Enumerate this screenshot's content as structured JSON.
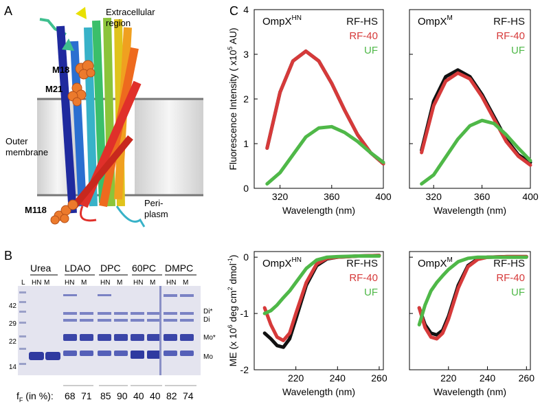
{
  "figure": {
    "panel_a": {
      "letter": "A",
      "labels": {
        "extracellular": "Extracellular\nregion",
        "outer_membrane": "Outer\nmembrane",
        "periplasm": "Peri-\nplasm",
        "m18": "M18",
        "m21": "M21",
        "m118": "M118"
      }
    },
    "panel_b": {
      "letter": "B",
      "conditions": [
        "Urea",
        "LDAO",
        "DPC",
        "60PC",
        "DMPC"
      ],
      "lane_l": "L",
      "lane_labels": [
        "HN",
        "M",
        "HN",
        "M",
        "HN",
        "M",
        "HN",
        "M",
        "HN",
        "M"
      ],
      "mw_markers": [
        "42",
        "29",
        "22",
        "14"
      ],
      "band_labels": [
        "Di*",
        "Di",
        "Mo*",
        "Mo"
      ],
      "ff_label": "f",
      "ff_sub": "F",
      "ff_suffix": " (in %):",
      "ff_values": [
        "68",
        "71",
        "85",
        "90",
        "40",
        "40",
        "82",
        "74"
      ]
    },
    "panel_c": {
      "letter": "C",
      "colors": {
        "RF-HS": "#111111",
        "RF-40": "#d63a3a",
        "UF": "#4fb848"
      }
    }
  },
  "chart_data": [
    {
      "type": "line",
      "title": "OmpX",
      "title_sup": "HN",
      "xlabel": "Wavelength (nm)",
      "ylabel": "Fluorescence Intensity ( x10",
      "ylabel_sup": "5",
      "ylabel_suffix": " AU)",
      "xlim": [
        300,
        400
      ],
      "ylim": [
        0,
        4
      ],
      "xticks": [
        "320",
        "360",
        "400"
      ],
      "yticks": [
        "0",
        "1",
        "2",
        "3",
        "4"
      ],
      "legend": [
        "RF-HS",
        "RF-40",
        "UF"
      ],
      "series": [
        {
          "name": "RF-HS",
          "x": [
            310,
            320,
            330,
            340,
            350,
            360,
            370,
            380,
            390,
            400
          ],
          "y": [
            0.9,
            2.15,
            2.85,
            3.07,
            2.85,
            2.35,
            1.75,
            1.2,
            0.8,
            0.55
          ]
        },
        {
          "name": "RF-40",
          "x": [
            310,
            320,
            330,
            340,
            350,
            360,
            370,
            380,
            390,
            400
          ],
          "y": [
            0.9,
            2.15,
            2.85,
            3.07,
            2.85,
            2.35,
            1.75,
            1.2,
            0.8,
            0.55
          ]
        },
        {
          "name": "UF",
          "x": [
            310,
            320,
            330,
            340,
            350,
            360,
            370,
            380,
            390,
            400
          ],
          "y": [
            0.1,
            0.35,
            0.75,
            1.15,
            1.35,
            1.38,
            1.25,
            1.05,
            0.8,
            0.58
          ]
        }
      ]
    },
    {
      "type": "line",
      "title": "OmpX",
      "title_sup": "M",
      "xlabel": "Wavelength (nm)",
      "xlim": [
        300,
        400
      ],
      "ylim": [
        0,
        4
      ],
      "xticks": [
        "320",
        "360",
        "400"
      ],
      "yticks": [],
      "legend": [
        "RF-HS",
        "RF-40",
        "UF"
      ],
      "series": [
        {
          "name": "RF-HS",
          "x": [
            310,
            320,
            330,
            340,
            350,
            360,
            370,
            380,
            390,
            400
          ],
          "y": [
            0.85,
            1.95,
            2.5,
            2.65,
            2.5,
            2.1,
            1.6,
            1.1,
            0.75,
            0.58
          ]
        },
        {
          "name": "RF-40",
          "x": [
            310,
            320,
            330,
            340,
            350,
            360,
            370,
            380,
            390,
            400
          ],
          "y": [
            0.8,
            1.85,
            2.4,
            2.58,
            2.45,
            2.05,
            1.55,
            1.05,
            0.72,
            0.52
          ]
        },
        {
          "name": "UF",
          "x": [
            310,
            320,
            330,
            340,
            350,
            360,
            370,
            380,
            390,
            400
          ],
          "y": [
            0.1,
            0.3,
            0.7,
            1.1,
            1.4,
            1.52,
            1.45,
            1.2,
            0.9,
            0.62
          ]
        }
      ]
    },
    {
      "type": "line",
      "title": "OmpX",
      "title_sup": "HN",
      "xlabel": "Wavelength (nm)",
      "ylabel": "ME (x 10",
      "ylabel_sup": "6",
      "ylabel_suffix": " deg cm",
      "ylabel_sup2": "2",
      "ylabel_suffix2": " dmol",
      "ylabel_sup3": "-1",
      "ylabel_suffix3": ")",
      "xlim": [
        200,
        262
      ],
      "ylim": [
        -2,
        0.1
      ],
      "xticks": [
        "220",
        "240",
        "260"
      ],
      "yticks": [
        "0",
        "-1",
        "-2"
      ],
      "legend": [
        "RF-HS",
        "RF-40",
        "UF"
      ],
      "series": [
        {
          "name": "RF-HS",
          "x": [
            205,
            208,
            211,
            214,
            217,
            220,
            225,
            230,
            235,
            240,
            250,
            260
          ],
          "y": [
            -1.35,
            -1.45,
            -1.57,
            -1.6,
            -1.45,
            -1.1,
            -0.5,
            -0.15,
            -0.03,
            0.0,
            0.02,
            0.03
          ]
        },
        {
          "name": "RF-40",
          "x": [
            205,
            208,
            211,
            214,
            217,
            220,
            225,
            230,
            235,
            240,
            250,
            260
          ],
          "y": [
            -0.9,
            -1.2,
            -1.42,
            -1.48,
            -1.35,
            -1.0,
            -0.45,
            -0.12,
            -0.02,
            0.0,
            0.02,
            0.03
          ]
        },
        {
          "name": "UF",
          "x": [
            205,
            208,
            211,
            214,
            217,
            220,
            225,
            230,
            235,
            240,
            250,
            260
          ],
          "y": [
            -1.0,
            -0.95,
            -0.85,
            -0.72,
            -0.6,
            -0.45,
            -0.2,
            -0.05,
            0.0,
            0.01,
            0.02,
            0.02
          ]
        }
      ]
    },
    {
      "type": "line",
      "title": "OmpX",
      "title_sup": "M",
      "xlabel": "Wavelength (nm)",
      "xlim": [
        200,
        262
      ],
      "ylim": [
        -2,
        0.1
      ],
      "xticks": [
        "220",
        "240",
        "260"
      ],
      "yticks": [],
      "legend": [
        "RF-HS",
        "RF-40",
        "UF"
      ],
      "series": [
        {
          "name": "RF-HS",
          "x": [
            205,
            208,
            211,
            214,
            217,
            220,
            225,
            230,
            235,
            240,
            250,
            260
          ],
          "y": [
            -0.9,
            -1.2,
            -1.35,
            -1.38,
            -1.3,
            -1.05,
            -0.5,
            -0.15,
            -0.03,
            0.0,
            0.01,
            0.01
          ]
        },
        {
          "name": "RF-40",
          "x": [
            205,
            208,
            211,
            214,
            217,
            220,
            225,
            230,
            235,
            240,
            250,
            260
          ],
          "y": [
            -0.9,
            -1.25,
            -1.42,
            -1.45,
            -1.35,
            -1.1,
            -0.55,
            -0.17,
            -0.04,
            0.0,
            0.01,
            0.01
          ]
        },
        {
          "name": "UF",
          "x": [
            205,
            208,
            211,
            214,
            217,
            220,
            225,
            230,
            235,
            240,
            250,
            260
          ],
          "y": [
            -1.2,
            -0.85,
            -0.6,
            -0.45,
            -0.33,
            -0.22,
            -0.08,
            -0.02,
            0.0,
            0.0,
            0.0,
            0.0
          ]
        }
      ]
    }
  ]
}
